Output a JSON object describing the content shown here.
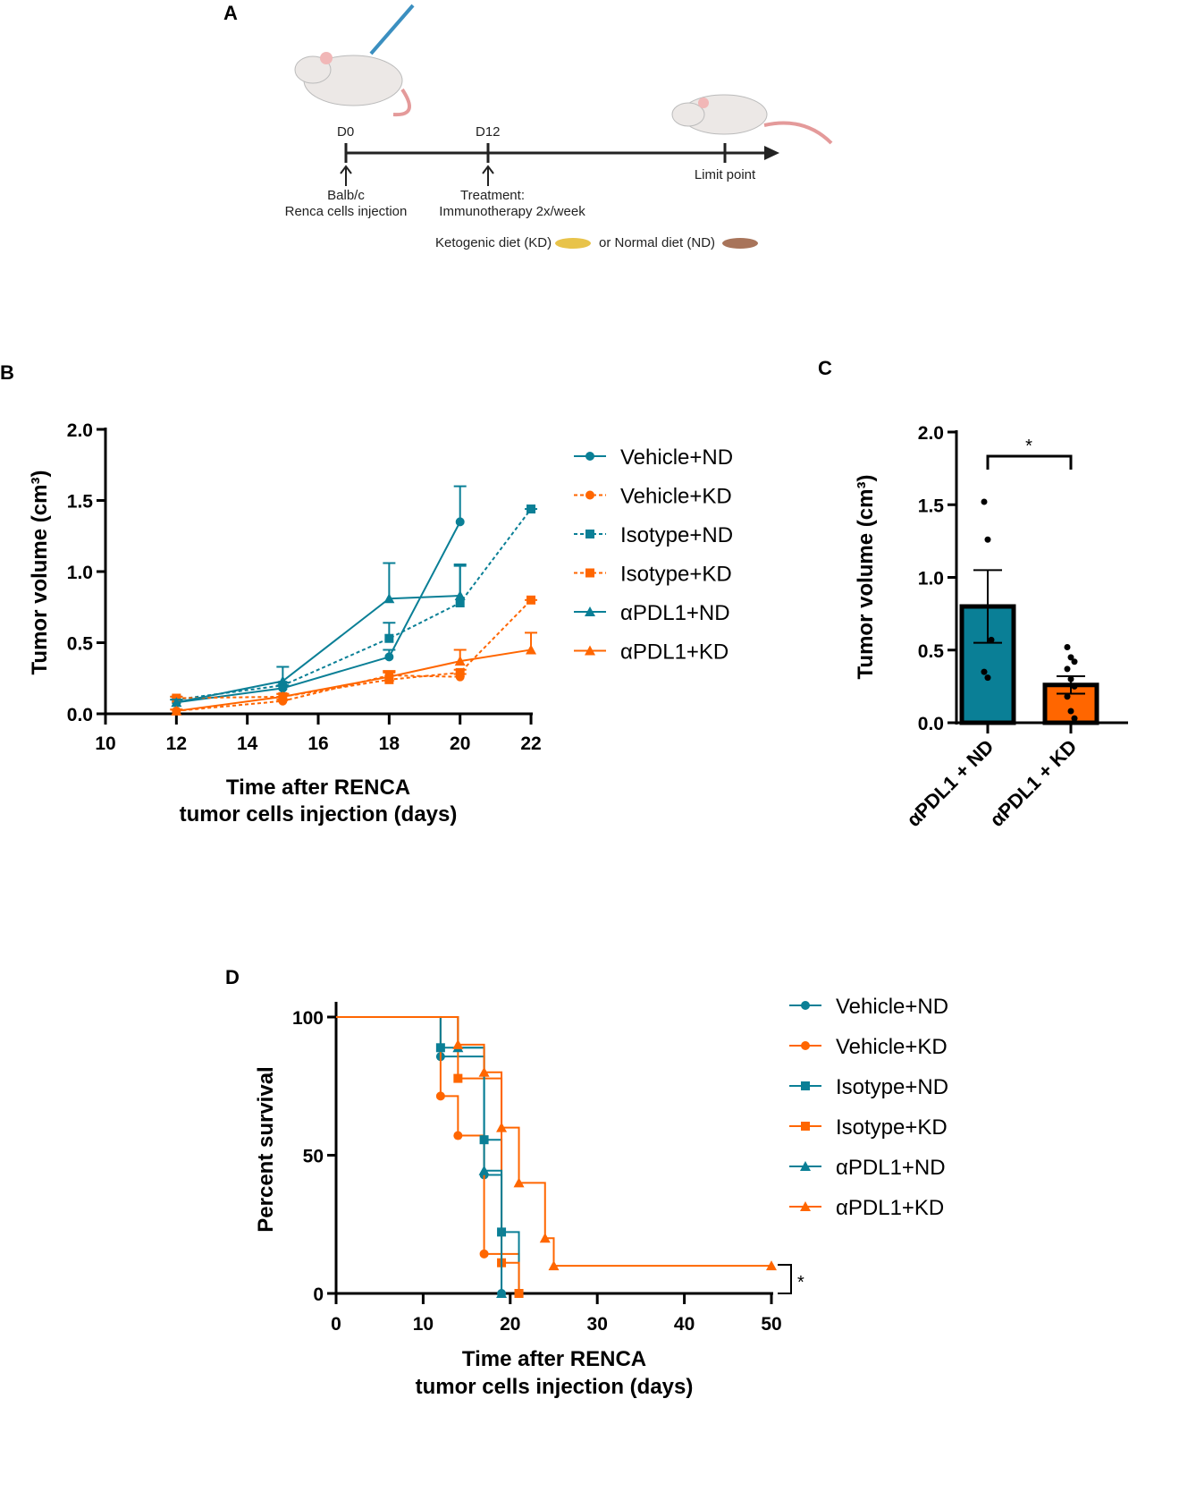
{
  "colors": {
    "teal": "#0a7f96",
    "orange": "#ff6600"
  },
  "panel_a": {
    "label": "A",
    "d0": "D0",
    "d12": "D12",
    "limit": "Limit point",
    "inj1": "Balb/c",
    "inj2": "Renca cells injection",
    "tr1": "Treatment:",
    "tr2": "Immunotherapy 2x/week",
    "kd": "Ketogenic diet (KD)",
    "nd": "or Normal diet (ND)"
  },
  "chart_data": [
    {
      "panel": "B",
      "type": "line",
      "xlabel": [
        "Time after RENCA",
        "tumor cells injection (days)"
      ],
      "ylabel": "Tumor volume (cm³)",
      "xlim": [
        10,
        22
      ],
      "ylim": [
        0,
        2
      ],
      "xticks": [
        "10",
        "12",
        "14",
        "16",
        "18",
        "20",
        "22"
      ],
      "yticks": [
        "0.0",
        "0.5",
        "1.0",
        "1.5",
        "2.0"
      ],
      "legend": "right",
      "series": [
        {
          "name": "Vehicle+ND",
          "color": "teal",
          "marker": "circle",
          "dash": false,
          "x": [
            12,
            15,
            18,
            20
          ],
          "y": [
            0.08,
            0.18,
            0.4,
            1.35
          ],
          "err": [
            0.1,
            0.2,
            0.45,
            1.6
          ]
        },
        {
          "name": "Vehicle+KD",
          "color": "orange",
          "marker": "circle",
          "dash": true,
          "x": [
            12,
            15,
            18,
            20
          ],
          "y": [
            0.02,
            0.09,
            0.27,
            0.26
          ],
          "err": [
            0.03,
            0.1,
            0.3,
            0.28
          ]
        },
        {
          "name": "Isotype+ND",
          "color": "teal",
          "marker": "square",
          "dash": true,
          "x": [
            12,
            15,
            18,
            20,
            22
          ],
          "y": [
            0.1,
            0.2,
            0.53,
            0.78,
            1.44
          ],
          "err": [
            0.12,
            0.22,
            0.64,
            1.05,
            1.44
          ]
        },
        {
          "name": "Isotype+KD",
          "color": "orange",
          "marker": "square",
          "dash": true,
          "x": [
            12,
            15,
            18,
            20,
            22
          ],
          "y": [
            0.11,
            0.12,
            0.24,
            0.29,
            0.8
          ],
          "err": [
            0.12,
            0.14,
            0.29,
            0.31,
            0.8
          ]
        },
        {
          "name": "αPDL1+ND",
          "color": "teal",
          "marker": "triangle",
          "dash": false,
          "x": [
            12,
            15,
            18,
            20
          ],
          "y": [
            0.08,
            0.23,
            0.81,
            0.83
          ],
          "err": [
            0.1,
            0.33,
            1.06,
            1.04
          ]
        },
        {
          "name": "αPDL1+KD",
          "color": "orange",
          "marker": "triangle",
          "dash": false,
          "x": [
            12,
            15,
            18,
            20,
            22
          ],
          "y": [
            0.02,
            0.12,
            0.26,
            0.37,
            0.45
          ],
          "err": [
            0.03,
            0.14,
            0.3,
            0.45,
            0.57
          ]
        }
      ]
    },
    {
      "panel": "C",
      "type": "bar",
      "ylabel": "Tumor volume (cm³)",
      "ylim": [
        0,
        2
      ],
      "yticks": [
        "0.0",
        "0.5",
        "1.0",
        "1.5",
        "2.0"
      ],
      "categories": [
        "αPDL1 + ND",
        "αPDL1 + KD"
      ],
      "values": [
        0.8,
        0.26
      ],
      "sem": [
        0.25,
        0.06
      ],
      "colors": [
        "teal",
        "orange"
      ],
      "points": [
        [
          1.52,
          1.26,
          0.57,
          0.35,
          0.31
        ],
        [
          0.52,
          0.45,
          0.42,
          0.37,
          0.3,
          0.25,
          0.18,
          0.08,
          0.03
        ]
      ],
      "significance": "*"
    },
    {
      "panel": "D",
      "type": "line",
      "subtype": "kaplan-meier",
      "xlabel": [
        "Time after RENCA",
        "tumor cells injection (days)"
      ],
      "ylabel": "Percent survival",
      "xlim": [
        0,
        50
      ],
      "ylim": [
        0,
        100
      ],
      "xticks": [
        "0",
        "10",
        "20",
        "30",
        "40",
        "50"
      ],
      "yticks": [
        "0",
        "50",
        "100"
      ],
      "legend": "right",
      "significance": "*",
      "series": [
        {
          "name": "Vehicle+ND",
          "color": "teal",
          "marker": "circle",
          "steps": [
            [
              12,
              85.7
            ],
            [
              17,
              42.9
            ],
            [
              19,
              0
            ]
          ]
        },
        {
          "name": "Vehicle+KD",
          "color": "orange",
          "marker": "circle",
          "steps": [
            [
              12,
              71.4
            ],
            [
              14,
              57.1
            ],
            [
              17,
              14.3
            ],
            [
              21,
              0
            ]
          ]
        },
        {
          "name": "Isotype+ND",
          "color": "teal",
          "marker": "square",
          "steps": [
            [
              12,
              88.9
            ],
            [
              17,
              55.6
            ],
            [
              19,
              22.2
            ],
            [
              21,
              0
            ]
          ]
        },
        {
          "name": "Isotype+KD",
          "color": "orange",
          "marker": "square",
          "steps": [
            [
              14,
              77.8
            ],
            [
              19,
              11.1
            ],
            [
              21,
              0
            ]
          ]
        },
        {
          "name": "αPDL1+ND",
          "color": "teal",
          "marker": "triangle",
          "steps": [
            [
              14,
              88.9
            ],
            [
              17,
              44.4
            ],
            [
              19,
              0
            ]
          ]
        },
        {
          "name": "αPDL1+KD",
          "color": "orange",
          "marker": "triangle",
          "steps": [
            [
              14,
              90
            ],
            [
              17,
              80
            ],
            [
              19,
              60
            ],
            [
              21,
              40
            ],
            [
              24,
              20
            ],
            [
              25,
              10
            ]
          ],
          "censored": [
            50,
            10
          ]
        }
      ]
    }
  ]
}
